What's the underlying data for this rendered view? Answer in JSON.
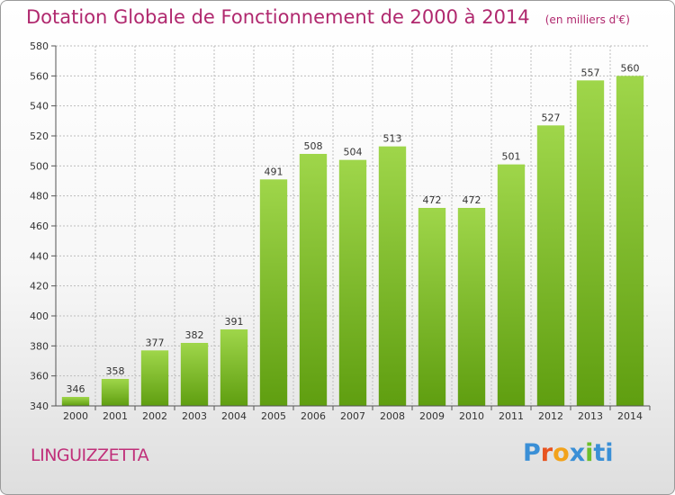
{
  "title": "Dotation Globale de Fonctionnement de 2000 à 2014",
  "unit_label": "(en milliers d'€)",
  "commune": "LINGUIZZETTA",
  "logo": {
    "p1": "P",
    "p2": "r",
    "p3": "o",
    "p4": "x",
    "p5": "i",
    "p6": "ti"
  },
  "colors": {
    "bar_light": "#9fd64a",
    "bar_dark": "#5f9e10",
    "title": "#b0286e",
    "grid": "#bdbdbd"
  },
  "chart_data": {
    "type": "bar",
    "title": "Dotation Globale de Fonctionnement de 2000 à 2014",
    "subtitle": "(en milliers d'€)",
    "categories": [
      "2000",
      "2001",
      "2002",
      "2003",
      "2004",
      "2005",
      "2006",
      "2007",
      "2008",
      "2009",
      "2010",
      "2011",
      "2012",
      "2013",
      "2014"
    ],
    "values": [
      346,
      358,
      377,
      382,
      391,
      491,
      508,
      504,
      513,
      472,
      472,
      501,
      527,
      557,
      560
    ],
    "ylim": [
      340,
      580
    ],
    "yticks": [
      340,
      360,
      380,
      400,
      420,
      440,
      460,
      480,
      500,
      520,
      540,
      560,
      580
    ],
    "grid": true,
    "legend": "none"
  }
}
